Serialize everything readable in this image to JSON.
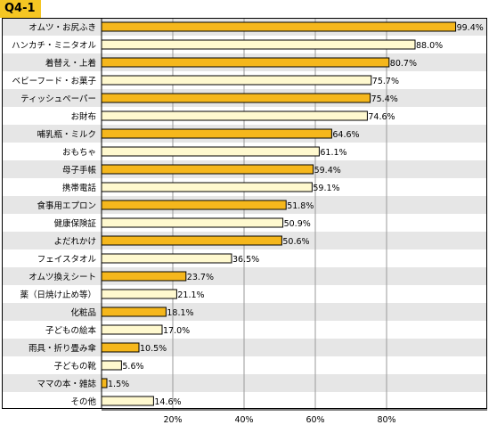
{
  "question_tag": "Q4-1",
  "colors": {
    "highlight": "#f5b71c",
    "plain": "#fff9cf",
    "tag": "#f5c623",
    "stripe": "#e6e6e6"
  },
  "chart_data": {
    "type": "bar",
    "orientation": "horizontal",
    "categories": [
      "オムツ・お尻ふき",
      "ハンカチ・ミニタオル",
      "着替え・上着",
      "ベビーフード・お菓子",
      "ティッシュペーパー",
      "お財布",
      "哺乳瓶・ミルク",
      "おもちゃ",
      "母子手帳",
      "携帯電話",
      "食事用エプロン",
      "健康保険証",
      "よだれかけ",
      "フェイスタオル",
      "オムツ換えシート",
      "薬（日焼け止め等）",
      "化粧品",
      "子どもの絵本",
      "雨具・折り畳み傘",
      "子どもの靴",
      "ママの本・雑誌",
      "その他"
    ],
    "values": [
      99.4,
      88.0,
      80.7,
      75.7,
      75.4,
      74.6,
      64.6,
      61.1,
      59.4,
      59.1,
      51.8,
      50.9,
      50.6,
      36.5,
      23.7,
      21.1,
      18.1,
      17.0,
      10.5,
      5.6,
      1.5,
      14.6
    ],
    "value_labels": [
      "99.4%",
      "88.0%",
      "80.7%",
      "75.7%",
      "75.4%",
      "74.6%",
      "64.6%",
      "61.1%",
      "59.4%",
      "59.1%",
      "51.8%",
      "50.9%",
      "50.6%",
      "36.5%",
      "23.7%",
      "21.1%",
      "18.1%",
      "17.0%",
      "10.5%",
      "5.6%",
      "1.5%",
      "14.6%"
    ],
    "highlighted": [
      true,
      false,
      true,
      false,
      true,
      false,
      true,
      false,
      true,
      false,
      true,
      false,
      true,
      false,
      true,
      false,
      true,
      false,
      true,
      false,
      true,
      false
    ],
    "x_ticks": [
      "20%",
      "40%",
      "60%",
      "80%"
    ],
    "xlim": [
      0,
      100
    ],
    "grid": true,
    "legend": "none"
  }
}
